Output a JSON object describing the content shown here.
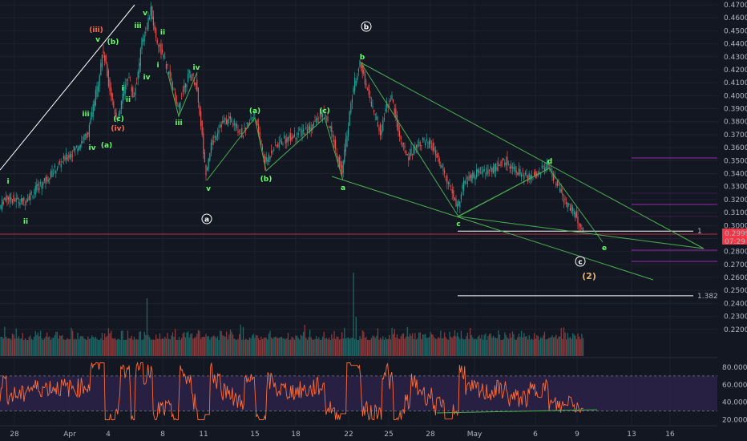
{
  "colors": {
    "background": "#131722",
    "grid": "#1e222d",
    "candle_up": "#26a69a",
    "candle_down": "#ef5350",
    "wave_green": "#4caf50",
    "wave_red": "#ef5350",
    "label_green": "#66ff66",
    "label_red": "#ff6b4a",
    "fib_line": "#ffffff",
    "rsi_line": "#ff6d3a",
    "rsi_band": "#2d2248",
    "level_purple": "#9c27b0",
    "price_red": "#f23645"
  },
  "chart_data": {
    "type": "candlestick",
    "price_axis": {
      "min": 0.21,
      "max": 0.47,
      "ticks": [
        "0.4700",
        "0.4600",
        "0.4500",
        "0.4400",
        "0.4300",
        "0.4200",
        "0.4100",
        "0.4000",
        "0.3900",
        "0.3800",
        "0.3700",
        "0.3600",
        "0.3500",
        "0.3400",
        "0.3300",
        "0.3200",
        "0.3100",
        "0.3000",
        "0.2900",
        "0.2800",
        "0.2700",
        "0.2600",
        "0.2500",
        "0.2400",
        "0.2300",
        "0.2200"
      ]
    },
    "price_labels": {
      "last_price": "0.2999",
      "countdown": "07:29"
    },
    "date_ticks": [
      "28",
      "Apr",
      "4",
      "8",
      "11",
      "15",
      "18",
      "22",
      "25",
      "28",
      "May",
      "6",
      "9",
      "13",
      "16"
    ],
    "fib_levels": [
      {
        "label": "1",
        "value": 0.2957
      },
      {
        "label": "1.382",
        "value": 0.2459
      }
    ],
    "rsi": {
      "ticks": [
        "80.0000",
        "60.0000",
        "40.0000",
        "20.0000"
      ],
      "upper": 70,
      "lower": 30,
      "min": 15,
      "max": 90
    },
    "wave_labels": {
      "iii_paren": "(iii)",
      "iv_paren": "(iv)",
      "a_paren": "(a)",
      "b_paren": "(b)",
      "c_paren": "(c)",
      "i": "i",
      "ii": "ii",
      "iii": "iii",
      "iv": "iv",
      "v": "v",
      "a": "a",
      "b": "b",
      "c": "c",
      "d": "d",
      "e": "e",
      "circle_a": "a",
      "circle_b": "b",
      "circle_c": "c",
      "wave_2": "(2)"
    }
  }
}
